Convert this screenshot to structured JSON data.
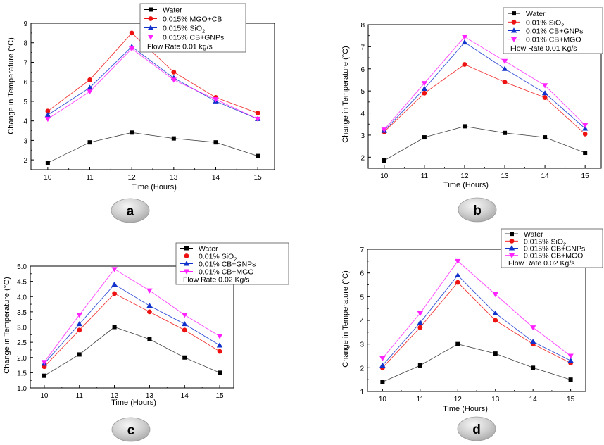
{
  "chart_data": [
    {
      "panel": "a",
      "type": "line",
      "title": "",
      "xlabel": "Time (Hours)",
      "ylabel": "Change in Temperature (°C)",
      "x": [
        10,
        11,
        12,
        13,
        14,
        15
      ],
      "xlim": [
        9.6,
        15.4
      ],
      "ylim": [
        1.5,
        9
      ],
      "yticks": [
        2,
        3,
        4,
        5,
        6,
        7,
        8,
        9
      ],
      "ytick_labels": [
        "2",
        "3",
        "4",
        "5",
        "6",
        "7",
        "8",
        "9"
      ],
      "legend_position": "top-right",
      "legend_note": "Flow Rate    0.01 kg/s",
      "series": [
        {
          "name": "Water",
          "marker": "square",
          "color": "#000000",
          "values": [
            1.85,
            2.9,
            3.4,
            3.1,
            2.9,
            2.2
          ]
        },
        {
          "name": "0.015% MGO+CB",
          "marker": "circle",
          "color": "#ee1111",
          "values": [
            4.5,
            6.1,
            8.5,
            6.5,
            5.2,
            4.4
          ]
        },
        {
          "name": "0.015% SiO",
          "sub": "2",
          "marker": "triangle-up",
          "color": "#1133cc",
          "values": [
            4.3,
            5.7,
            7.8,
            6.2,
            5.0,
            4.1
          ]
        },
        {
          "name": "0.015% CB+GNPs",
          "marker": "triangle-down",
          "color": "#ff22ff",
          "values": [
            4.1,
            5.5,
            7.7,
            6.1,
            5.1,
            4.1
          ]
        }
      ]
    },
    {
      "panel": "b",
      "type": "line",
      "title": "",
      "xlabel": "Time (Hours)",
      "ylabel": "Change in Temperature (°C)",
      "x": [
        10,
        11,
        12,
        13,
        14,
        15
      ],
      "xlim": [
        9.6,
        15.4
      ],
      "ylim": [
        1.5,
        8
      ],
      "yticks": [
        2,
        3,
        4,
        5,
        6,
        7,
        8
      ],
      "ytick_labels": [
        "2",
        "3",
        "4",
        "5",
        "6",
        "7",
        "8"
      ],
      "legend_position": "top-right",
      "legend_note": "Flow Rate    0.01 Kg/s",
      "series": [
        {
          "name": "Water",
          "marker": "square",
          "color": "#000000",
          "values": [
            1.85,
            2.9,
            3.4,
            3.1,
            2.9,
            2.2
          ]
        },
        {
          "name": "0.01% SiO",
          "sub": "2",
          "marker": "circle",
          "color": "#ee1111",
          "values": [
            3.15,
            4.9,
            6.2,
            5.4,
            4.7,
            3.05
          ]
        },
        {
          "name": "0.01% CB+GNPs",
          "marker": "triangle-up",
          "color": "#1133cc",
          "values": [
            3.2,
            5.1,
            7.2,
            6.0,
            4.9,
            3.3
          ]
        },
        {
          "name": "0.01% CB+MGO",
          "marker": "triangle-down",
          "color": "#ff22ff",
          "values": [
            3.25,
            5.35,
            7.45,
            6.35,
            5.25,
            3.45
          ]
        }
      ]
    },
    {
      "panel": "c",
      "type": "line",
      "title": "",
      "xlabel": "Time (Hours)",
      "ylabel": "Change in Temperature (°C)",
      "x": [
        10,
        11,
        12,
        13,
        14,
        15
      ],
      "xlim": [
        9.6,
        15.4
      ],
      "ylim": [
        1.0,
        5.0
      ],
      "yticks": [
        1.0,
        1.5,
        2.0,
        2.5,
        3.0,
        3.5,
        4.0,
        4.5,
        5.0
      ],
      "ytick_labels": [
        "1.0",
        "1.5",
        "2.0",
        "2.5",
        "3.0",
        "3.5",
        "4.0",
        "4.5",
        "5.0"
      ],
      "legend_position": "top-right",
      "legend_note": "Flow Rate   0.02 Kg/s",
      "series": [
        {
          "name": "Water",
          "marker": "square",
          "color": "#000000",
          "values": [
            1.4,
            2.1,
            3.0,
            2.6,
            2.0,
            1.5
          ]
        },
        {
          "name": "0.01% SiO",
          "sub": "2",
          "marker": "circle",
          "color": "#ee1111",
          "values": [
            1.7,
            2.9,
            4.1,
            3.5,
            2.9,
            2.2
          ]
        },
        {
          "name": "0.01% CB+GNPs",
          "marker": "triangle-up",
          "color": "#1133cc",
          "values": [
            1.8,
            3.1,
            4.4,
            3.7,
            3.1,
            2.4
          ]
        },
        {
          "name": "0.01% CB+MGO",
          "marker": "triangle-down",
          "color": "#ff22ff",
          "values": [
            1.85,
            3.4,
            4.9,
            4.2,
            3.4,
            2.7
          ]
        }
      ]
    },
    {
      "panel": "d",
      "type": "line",
      "title": "",
      "xlabel": "Time (Hours)",
      "ylabel": "Change in Temperature (°C)",
      "x": [
        10,
        11,
        12,
        13,
        14,
        15
      ],
      "xlim": [
        9.6,
        15.4
      ],
      "ylim": [
        1,
        7
      ],
      "yticks": [
        1,
        2,
        3,
        4,
        5,
        6,
        7
      ],
      "ytick_labels": [
        "1",
        "2",
        "3",
        "4",
        "5",
        "6",
        "7"
      ],
      "legend_position": "top-right",
      "legend_note": "Flow Rate  0.02 Kg/s",
      "series": [
        {
          "name": "Water",
          "marker": "square",
          "color": "#000000",
          "values": [
            1.4,
            2.1,
            3.0,
            2.6,
            2.0,
            1.5
          ]
        },
        {
          "name": "0.015% SiO",
          "sub": "2",
          "marker": "circle",
          "color": "#ee1111",
          "values": [
            2.0,
            3.7,
            5.6,
            4.0,
            3.0,
            2.2
          ]
        },
        {
          "name": "0.015% CB+GNPs",
          "marker": "triangle-up",
          "color": "#1133cc",
          "values": [
            2.1,
            3.9,
            5.9,
            4.3,
            3.1,
            2.3
          ]
        },
        {
          "name": "0.015% CB+MGO",
          "marker": "triangle-down",
          "color": "#ff22ff",
          "values": [
            2.4,
            4.3,
            6.5,
            5.1,
            3.7,
            2.5
          ]
        }
      ]
    }
  ]
}
